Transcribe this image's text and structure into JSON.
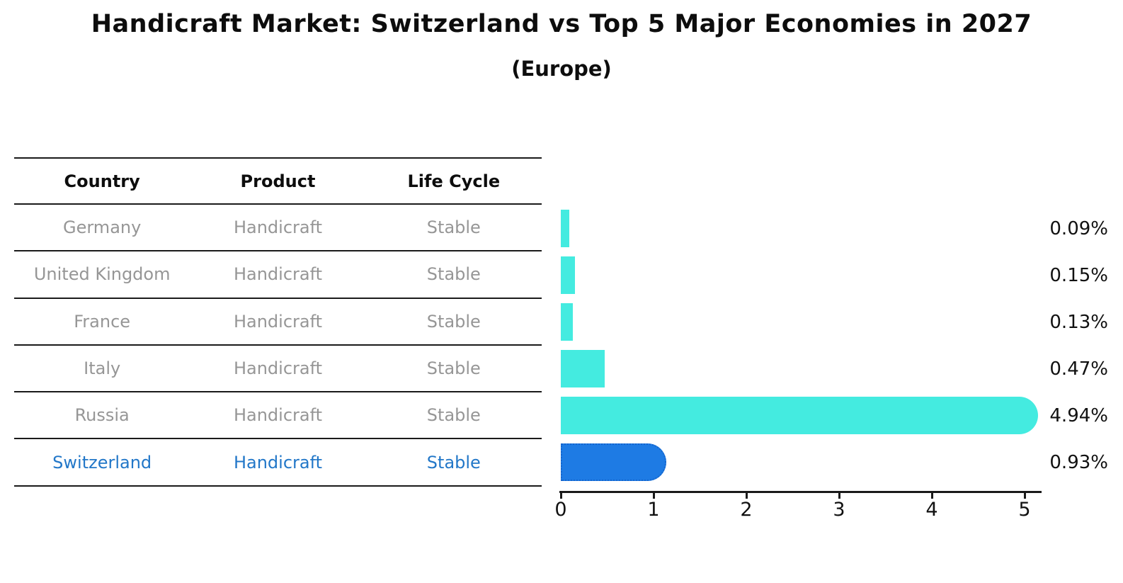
{
  "title": "Handicraft Market: Switzerland vs Top 5 Major Economies in 2027",
  "subtitle": "(Europe)",
  "table": {
    "headers": [
      "Country",
      "Product",
      "Life Cycle"
    ],
    "rows": [
      {
        "country": "Germany",
        "product": "Handicraft",
        "life_cycle": "Stable",
        "highlighted": false
      },
      {
        "country": "United Kingdom",
        "product": "Handicraft",
        "life_cycle": "Stable",
        "highlighted": false
      },
      {
        "country": "France",
        "product": "Handicraft",
        "life_cycle": "Stable",
        "highlighted": false
      },
      {
        "country": "Italy",
        "product": "Handicraft",
        "life_cycle": "Stable",
        "highlighted": false
      },
      {
        "country": "Russia",
        "product": "Handicraft",
        "life_cycle": "Stable",
        "highlighted": false
      },
      {
        "country": "Switzerland",
        "product": "Handicraft",
        "life_cycle": "Stable",
        "highlighted": true
      }
    ]
  },
  "chart_data": {
    "type": "bar",
    "orientation": "horizontal",
    "title": "Handicraft Market: Switzerland vs Top 5 Major Economies in 2027 (Europe)",
    "categories": [
      "Germany",
      "United Kingdom",
      "France",
      "Italy",
      "Russia",
      "Switzerland"
    ],
    "values": [
      0.09,
      0.15,
      0.13,
      0.47,
      4.94,
      0.93
    ],
    "value_labels": [
      "0.09%",
      "0.15%",
      "0.13%",
      "0.47%",
      "4.94%",
      "0.93%"
    ],
    "x_ticks": [
      "0",
      "1",
      "2",
      "3",
      "4",
      "5"
    ],
    "xlim": [
      0,
      5.19
    ],
    "grid": false,
    "legend": "none",
    "bar_color": "#44ebe0",
    "highlight_bar_color": "#1e7be4",
    "highlight_text_color": "#2277c8",
    "highlight_index": 5
  }
}
